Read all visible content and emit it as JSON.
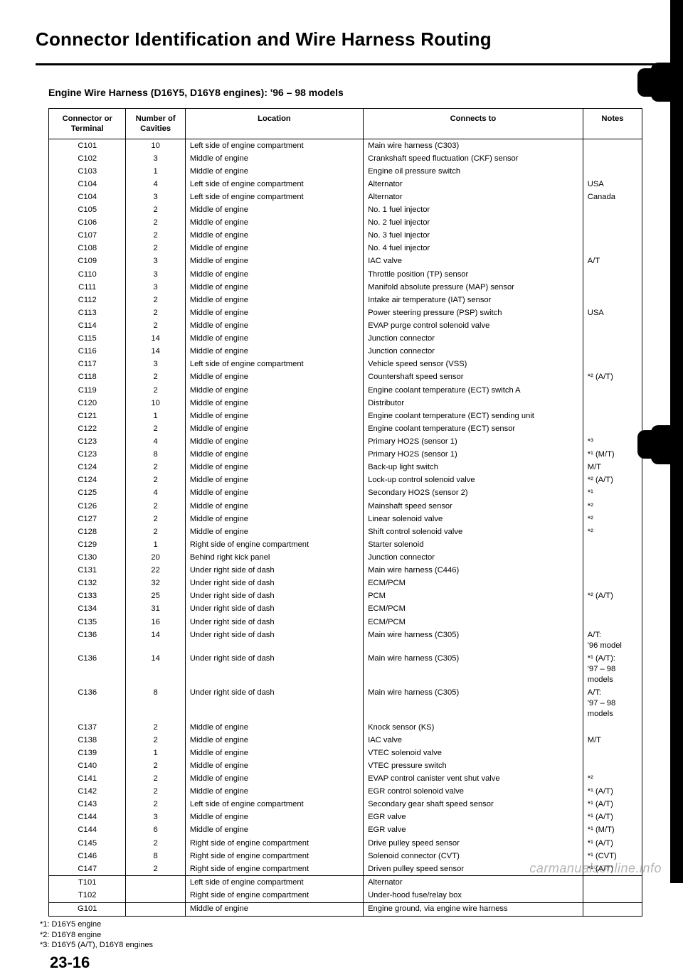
{
  "title": "Connector Identification and Wire Harness Routing",
  "subtitle": "Engine Wire Harness (D16Y5, D16Y8 engines): '96 – 98 models",
  "headers": {
    "conn": "Connector or\nTerminal",
    "cav": "Number of\nCavities",
    "loc": "Location",
    "cto": "Connects to",
    "notes": "Notes"
  },
  "rows": [
    {
      "conn": "C101",
      "cav": "10",
      "loc": "Left side of engine compartment",
      "cto": "Main wire harness (C303)",
      "notes": ""
    },
    {
      "conn": "C102",
      "cav": "3",
      "loc": "Middle of engine",
      "cto": "Crankshaft speed fluctuation (CKF) sensor",
      "notes": ""
    },
    {
      "conn": "C103",
      "cav": "1",
      "loc": "Middle of engine",
      "cto": "Engine oil pressure switch",
      "notes": ""
    },
    {
      "conn": "C104",
      "cav": "4",
      "loc": "Left side of engine compartment",
      "cto": "Alternator",
      "notes": "USA"
    },
    {
      "conn": "C104",
      "cav": "3",
      "loc": "Left side of engine compartment",
      "cto": "Alternator",
      "notes": "Canada"
    },
    {
      "conn": "C105",
      "cav": "2",
      "loc": "Middle of engine",
      "cto": "No. 1 fuel injector",
      "notes": ""
    },
    {
      "conn": "C106",
      "cav": "2",
      "loc": "Middle of engine",
      "cto": "No. 2 fuel injector",
      "notes": ""
    },
    {
      "conn": "C107",
      "cav": "2",
      "loc": "Middle of engine",
      "cto": "No. 3 fuel injector",
      "notes": ""
    },
    {
      "conn": "C108",
      "cav": "2",
      "loc": "Middle of engine",
      "cto": "No. 4 fuel injector",
      "notes": ""
    },
    {
      "conn": "C109",
      "cav": "3",
      "loc": "Middle of engine",
      "cto": "IAC valve",
      "notes": "A/T"
    },
    {
      "conn": "C110",
      "cav": "3",
      "loc": "Middle of engine",
      "cto": "Throttle position (TP) sensor",
      "notes": ""
    },
    {
      "conn": "C111",
      "cav": "3",
      "loc": "Middle of engine",
      "cto": "Manifold absolute pressure (MAP) sensor",
      "notes": ""
    },
    {
      "conn": "C112",
      "cav": "2",
      "loc": "Middle of engine",
      "cto": "Intake air temperature (IAT) sensor",
      "notes": ""
    },
    {
      "conn": "C113",
      "cav": "2",
      "loc": "Middle of engine",
      "cto": "Power steering pressure (PSP) switch",
      "notes": "USA"
    },
    {
      "conn": "C114",
      "cav": "2",
      "loc": "Middle of engine",
      "cto": "EVAP purge control solenoid valve",
      "notes": ""
    },
    {
      "conn": "C115",
      "cav": "14",
      "loc": "Middle of engine",
      "cto": "Junction connector",
      "notes": ""
    },
    {
      "conn": "C116",
      "cav": "14",
      "loc": "Middle of engine",
      "cto": "Junction connector",
      "notes": ""
    },
    {
      "conn": "C117",
      "cav": "3",
      "loc": "Left side of engine compartment",
      "cto": "Vehicle speed sensor (VSS)",
      "notes": ""
    },
    {
      "conn": "C118",
      "cav": "2",
      "loc": "Middle of engine",
      "cto": "Countershaft speed sensor",
      "notes": "*² (A/T)"
    },
    {
      "conn": "C119",
      "cav": "2",
      "loc": "Middle of engine",
      "cto": "Engine coolant temperature (ECT) switch A",
      "notes": ""
    },
    {
      "conn": "C120",
      "cav": "10",
      "loc": "Middle of engine",
      "cto": "Distributor",
      "notes": ""
    },
    {
      "conn": "C121",
      "cav": "1",
      "loc": "Middle of engine",
      "cto": "Engine coolant temperature (ECT) sending unit",
      "notes": ""
    },
    {
      "conn": "C122",
      "cav": "2",
      "loc": "Middle of engine",
      "cto": "Engine coolant temperature (ECT) sensor",
      "notes": ""
    },
    {
      "conn": "C123",
      "cav": "4",
      "loc": "Middle of engine",
      "cto": "Primary HO2S (sensor 1)",
      "notes": "*³"
    },
    {
      "conn": "C123",
      "cav": "8",
      "loc": "Middle of engine",
      "cto": "Primary HO2S (sensor 1)",
      "notes": "*¹ (M/T)"
    },
    {
      "conn": "C124",
      "cav": "2",
      "loc": "Middle of engine",
      "cto": "Back-up light switch",
      "notes": "M/T"
    },
    {
      "conn": "C124",
      "cav": "2",
      "loc": "Middle of engine",
      "cto": "Lock-up control solenoid valve",
      "notes": "*² (A/T)"
    },
    {
      "conn": "C125",
      "cav": "4",
      "loc": "Middle of engine",
      "cto": "Secondary HO2S (sensor 2)",
      "notes": "*¹"
    },
    {
      "conn": "C126",
      "cav": "2",
      "loc": "Middle of engine",
      "cto": "Mainshaft speed sensor",
      "notes": "*²"
    },
    {
      "conn": "C127",
      "cav": "2",
      "loc": "Middle of engine",
      "cto": "Linear solenoid valve",
      "notes": "*²"
    },
    {
      "conn": "C128",
      "cav": "2",
      "loc": "Middle of engine",
      "cto": "Shift control solenoid valve",
      "notes": "*²"
    },
    {
      "conn": "C129",
      "cav": "1",
      "loc": "Right side of engine compartment",
      "cto": "Starter solenoid",
      "notes": ""
    },
    {
      "conn": "C130",
      "cav": "20",
      "loc": "Behind right kick panel",
      "cto": "Junction connector",
      "notes": ""
    },
    {
      "conn": "C131",
      "cav": "22",
      "loc": "Under right side of dash",
      "cto": "Main wire harness (C446)",
      "notes": ""
    },
    {
      "conn": "C132",
      "cav": "32",
      "loc": "Under right side of dash",
      "cto": "ECM/PCM",
      "notes": ""
    },
    {
      "conn": "C133",
      "cav": "25",
      "loc": "Under right side of dash",
      "cto": "PCM",
      "notes": "*² (A/T)"
    },
    {
      "conn": "C134",
      "cav": "31",
      "loc": "Under right side of dash",
      "cto": "ECM/PCM",
      "notes": ""
    },
    {
      "conn": "C135",
      "cav": "16",
      "loc": "Under right side of dash",
      "cto": "ECM/PCM",
      "notes": ""
    },
    {
      "conn": "C136",
      "cav": "14",
      "loc": "Under right side of dash",
      "cto": "Main wire harness (C305)",
      "notes": "A/T:\n  '96 model"
    },
    {
      "conn": "C136",
      "cav": "14",
      "loc": "Under right side of dash",
      "cto": "Main wire harness (C305)",
      "notes": "*¹ (A/T):\n  '97 – 98\n  models"
    },
    {
      "conn": "C136",
      "cav": "8",
      "loc": "Under right side of dash",
      "cto": "Main wire harness (C305)",
      "notes": "A/T:\n  '97 – 98\n  models"
    },
    {
      "conn": "C137",
      "cav": "2",
      "loc": "Middle of engine",
      "cto": "Knock sensor (KS)",
      "notes": ""
    },
    {
      "conn": "C138",
      "cav": "2",
      "loc": "Middle of engine",
      "cto": "IAC valve",
      "notes": "M/T"
    },
    {
      "conn": "C139",
      "cav": "1",
      "loc": "Middle of engine",
      "cto": "VTEC solenoid valve",
      "notes": ""
    },
    {
      "conn": "C140",
      "cav": "2",
      "loc": "Middle of engine",
      "cto": "VTEC pressure switch",
      "notes": ""
    },
    {
      "conn": "C141",
      "cav": "2",
      "loc": "Middle of engine",
      "cto": "EVAP control canister vent shut valve",
      "notes": "*²"
    },
    {
      "conn": "C142",
      "cav": "2",
      "loc": "Middle of engine",
      "cto": "EGR control solenoid valve",
      "notes": "*¹ (A/T)"
    },
    {
      "conn": "C143",
      "cav": "2",
      "loc": "Left side of engine compartment",
      "cto": "Secondary gear shaft speed sensor",
      "notes": "*¹ (A/T)"
    },
    {
      "conn": "C144",
      "cav": "3",
      "loc": "Middle of engine",
      "cto": "EGR valve",
      "notes": "*¹ (A/T)"
    },
    {
      "conn": "C144",
      "cav": "6",
      "loc": "Middle of engine",
      "cto": "EGR valve",
      "notes": "*¹ (M/T)"
    },
    {
      "conn": "C145",
      "cav": "2",
      "loc": "Right side of engine compartment",
      "cto": "Drive pulley speed sensor",
      "notes": "*¹ (A/T)"
    },
    {
      "conn": "C146",
      "cav": "8",
      "loc": "Right side of engine compartment",
      "cto": "Solenoid connector (CVT)",
      "notes": "*¹ (CVT)"
    },
    {
      "conn": "C147",
      "cav": "2",
      "loc": "Right side of engine compartment",
      "cto": "Driven pulley speed sensor",
      "notes": "*¹ (A/T)"
    }
  ],
  "rowsT": [
    {
      "conn": "T101",
      "cav": "",
      "loc": "Left side of engine compartment",
      "cto": "Alternator",
      "notes": ""
    },
    {
      "conn": "T102",
      "cav": "",
      "loc": "Right side of engine compartment",
      "cto": "Under-hood fuse/relay box",
      "notes": ""
    }
  ],
  "rowsG": [
    {
      "conn": "G101",
      "cav": "",
      "loc": "Middle of engine",
      "cto": "Engine ground, via engine wire harness",
      "notes": ""
    }
  ],
  "footnotes": [
    "*1: D16Y5 engine",
    "*2: D16Y8 engine",
    "*3: D16Y5 (A/T), D16Y8 engines"
  ],
  "page_number": "23-16",
  "watermark": "carmanualsonline.info"
}
